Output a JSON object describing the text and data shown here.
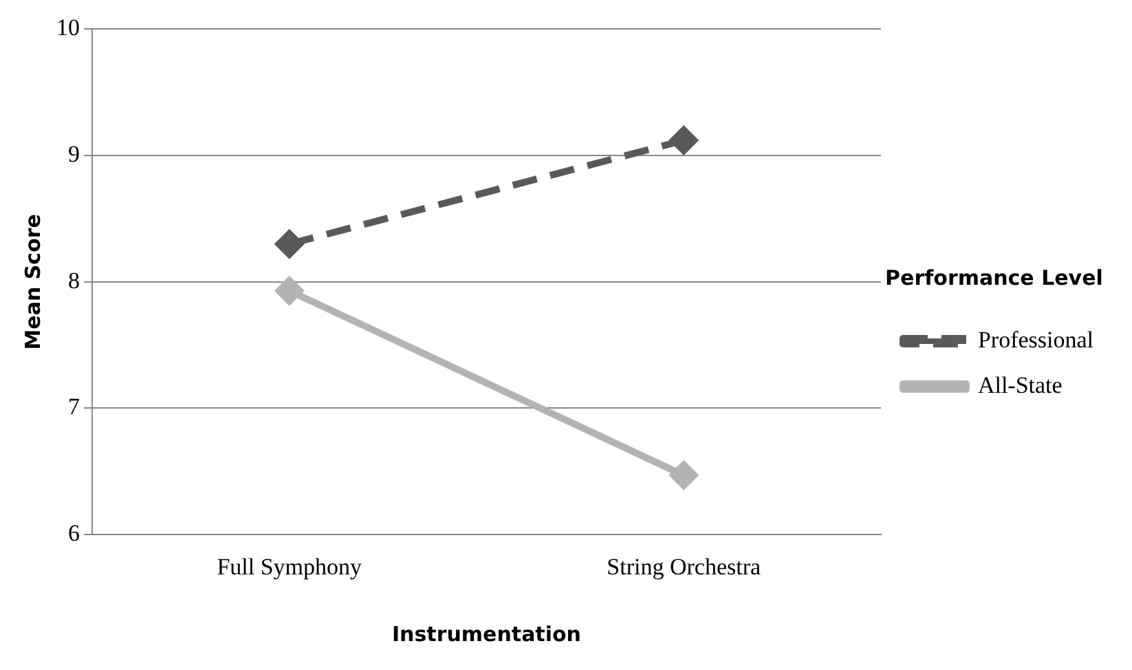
{
  "chart_data": {
    "type": "line",
    "xlabel": "Instrumentation",
    "ylabel": "Mean Score",
    "legend_title": "Performance Level",
    "categories": [
      "Full Symphony",
      "String Orchestra"
    ],
    "series": [
      {
        "name": "Professional",
        "color": "#595959",
        "values": [
          8.3,
          9.12
        ],
        "line_style": "dashed"
      },
      {
        "name": "All-State",
        "color": "#b3b3b3",
        "values": [
          7.93,
          6.47
        ],
        "line_style": "solid"
      }
    ],
    "ylim": [
      6,
      10
    ],
    "yticks": [
      6,
      7,
      8,
      9,
      10
    ],
    "grid": "y",
    "legend": "right",
    "marker": "diamond"
  }
}
